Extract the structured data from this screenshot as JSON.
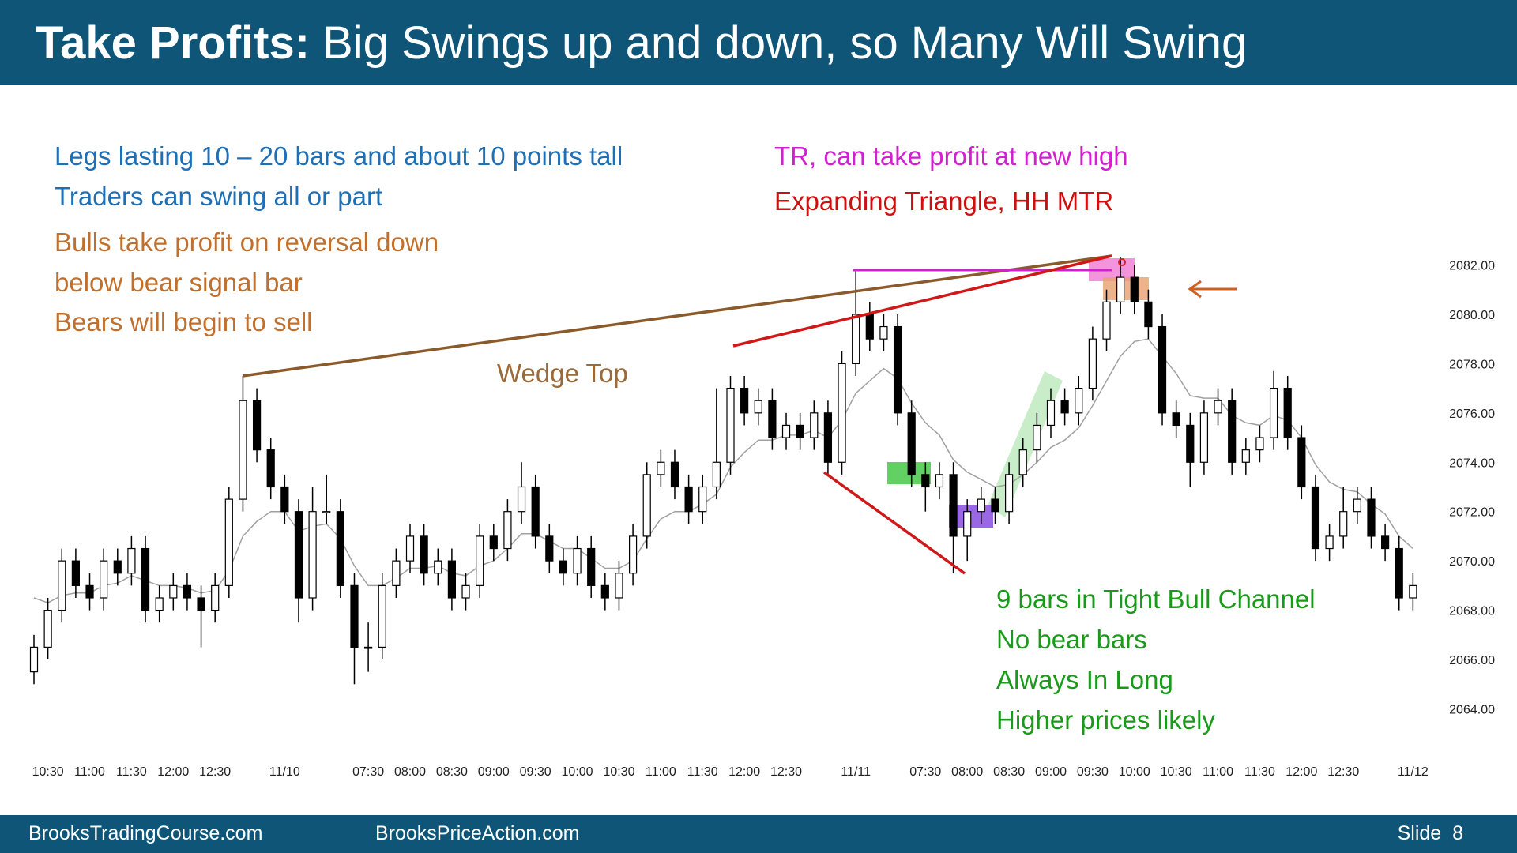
{
  "header": {
    "title_bold": "Take Profits:",
    "title_rest": "Big Swings up and down, so Many Will Swing"
  },
  "chart_data": {
    "type": "candlestick",
    "notes": {
      "legs": "Legs lasting 10 – 20 bars and about 10 points tall",
      "swing": "Traders can swing all or part",
      "bulls1": "Bulls take profit on reversal down",
      "bulls2": "below bear signal bar",
      "bears": "Bears will begin to sell",
      "tr": "TR, can take profit at new high",
      "triangle": "Expanding Triangle, HH MTR",
      "wedge": "Wedge Top",
      "channel1": "9 bars in Tight Bull Channel",
      "channel2": "No bear bars",
      "channel3": "Always In Long",
      "channel4": "Higher prices likely"
    },
    "categories": [
      null,
      "10:30",
      null,
      null,
      "11:00",
      null,
      null,
      "11:30",
      null,
      null,
      "12:00",
      null,
      null,
      "12:30",
      null,
      null,
      null,
      null,
      "11/10",
      null,
      null,
      null,
      null,
      null,
      "07:30",
      null,
      null,
      "08:00",
      null,
      null,
      "08:30",
      null,
      null,
      "09:00",
      null,
      null,
      "09:30",
      null,
      null,
      "10:00",
      null,
      null,
      "10:30",
      null,
      null,
      "11:00",
      null,
      null,
      "11:30",
      null,
      null,
      "12:00",
      null,
      null,
      "12:30",
      null,
      null,
      null,
      null,
      "11/11",
      null,
      null,
      null,
      null,
      "07:30",
      null,
      null,
      "08:00",
      null,
      null,
      "08:30",
      null,
      null,
      "09:00",
      null,
      null,
      "09:30",
      null,
      null,
      "10:00",
      null,
      null,
      "10:30",
      null,
      null,
      "11:00",
      null,
      null,
      "11:30",
      null,
      null,
      "12:00",
      null,
      null,
      "12:30",
      null,
      null,
      null,
      null,
      "11/12"
    ],
    "candles": [
      [
        2065.5,
        2067,
        2065,
        2066.5
      ],
      [
        2066.5,
        2068.5,
        2066,
        2068
      ],
      [
        2068,
        2070.5,
        2067.5,
        2070
      ],
      [
        2070,
        2070.5,
        2068.5,
        2069
      ],
      [
        2069,
        2069.5,
        2068,
        2068.5
      ],
      [
        2068.5,
        2070.5,
        2068,
        2070
      ],
      [
        2070,
        2070.5,
        2069,
        2069.5
      ],
      [
        2069.5,
        2071,
        2069,
        2070.5
      ],
      [
        2070.5,
        2071,
        2067.5,
        2068
      ],
      [
        2068,
        2069,
        2067.5,
        2068.5
      ],
      [
        2068.5,
        2069.5,
        2068,
        2069
      ],
      [
        2069,
        2069.5,
        2068,
        2068.5
      ],
      [
        2068.5,
        2069,
        2066.5,
        2068
      ],
      [
        2068,
        2069.5,
        2067.5,
        2069
      ],
      [
        2069,
        2073,
        2068.5,
        2072.5
      ],
      [
        2072.5,
        2077.5,
        2072,
        2076.5
      ],
      [
        2076.5,
        2077,
        2074,
        2074.5
      ],
      [
        2074.5,
        2075,
        2072.5,
        2073
      ],
      [
        2073,
        2073.5,
        2071.5,
        2072
      ],
      [
        2072,
        2072.5,
        2067.5,
        2068.5
      ],
      [
        2068.5,
        2073,
        2068,
        2072
      ],
      [
        2072,
        2073.5,
        2071.5,
        2072
      ],
      [
        2072,
        2072.5,
        2068.5,
        2069
      ],
      [
        2069,
        2069.5,
        2065,
        2066.5
      ],
      [
        2066.5,
        2067.5,
        2065.5,
        2066.5
      ],
      [
        2066.5,
        2069.5,
        2066,
        2069
      ],
      [
        2069,
        2070.5,
        2068.5,
        2070
      ],
      [
        2070,
        2071.5,
        2069.5,
        2071
      ],
      [
        2071,
        2071.5,
        2069,
        2069.5
      ],
      [
        2069.5,
        2070.5,
        2069,
        2070
      ],
      [
        2070,
        2070.5,
        2068,
        2068.5
      ],
      [
        2068.5,
        2069.5,
        2068,
        2069
      ],
      [
        2069,
        2071.5,
        2068.5,
        2071
      ],
      [
        2071,
        2071.5,
        2070,
        2070.5
      ],
      [
        2070.5,
        2072.5,
        2070,
        2072
      ],
      [
        2072,
        2074,
        2071.5,
        2073
      ],
      [
        2073,
        2073.5,
        2070.5,
        2071
      ],
      [
        2071,
        2071.5,
        2069.5,
        2070
      ],
      [
        2070,
        2070.5,
        2069,
        2069.5
      ],
      [
        2069.5,
        2071,
        2069,
        2070.5
      ],
      [
        2070.5,
        2071,
        2068.5,
        2069
      ],
      [
        2069,
        2069.5,
        2068,
        2068.5
      ],
      [
        2068.5,
        2070,
        2068,
        2069.5
      ],
      [
        2069.5,
        2071.5,
        2069,
        2071
      ],
      [
        2071,
        2074,
        2070.5,
        2073.5
      ],
      [
        2073.5,
        2074.5,
        2073,
        2074
      ],
      [
        2074,
        2074.5,
        2072.5,
        2073
      ],
      [
        2073,
        2073.5,
        2071.5,
        2072
      ],
      [
        2072,
        2073.5,
        2071.5,
        2073
      ],
      [
        2073,
        2077,
        2072.5,
        2074
      ],
      [
        2074,
        2077.5,
        2073.5,
        2077
      ],
      [
        2077,
        2077.5,
        2075.5,
        2076
      ],
      [
        2076,
        2077,
        2075.5,
        2076.5
      ],
      [
        2076.5,
        2077,
        2074.5,
        2075
      ],
      [
        2075,
        2076,
        2074.5,
        2075.5
      ],
      [
        2075.5,
        2076,
        2074.5,
        2075
      ],
      [
        2075,
        2076.5,
        2074.5,
        2076
      ],
      [
        2076,
        2076.5,
        2073.5,
        2074
      ],
      [
        2074,
        2078.5,
        2073.5,
        2078
      ],
      [
        2078,
        2081.8,
        2077.5,
        2080
      ],
      [
        2080,
        2080.5,
        2078.5,
        2079
      ],
      [
        2079,
        2080,
        2078.5,
        2079.5
      ],
      [
        2079.5,
        2080,
        2075.5,
        2076
      ],
      [
        2076,
        2076.5,
        2073,
        2073.5
      ],
      [
        2073.5,
        2074,
        2072,
        2073
      ],
      [
        2073,
        2074,
        2072.5,
        2073.5
      ],
      [
        2073.5,
        2074,
        2069.5,
        2071
      ],
      [
        2071,
        2072.5,
        2070,
        2072
      ],
      [
        2072,
        2073,
        2071.5,
        2072.5
      ],
      [
        2072.5,
        2073,
        2071.5,
        2072
      ],
      [
        2072,
        2074,
        2071.5,
        2073.5
      ],
      [
        2073.5,
        2075,
        2073,
        2074.5
      ],
      [
        2074.5,
        2076,
        2074,
        2075.5
      ],
      [
        2075.5,
        2077,
        2075,
        2076.5
      ],
      [
        2076.5,
        2077,
        2075.5,
        2076
      ],
      [
        2076,
        2077.5,
        2075.5,
        2077
      ],
      [
        2077,
        2079.5,
        2076.5,
        2079
      ],
      [
        2079,
        2081,
        2078.5,
        2080.5
      ],
      [
        2080.5,
        2082.3,
        2080,
        2081.5
      ],
      [
        2081.5,
        2082,
        2080,
        2080.5
      ],
      [
        2080.5,
        2081,
        2079,
        2079.5
      ],
      [
        2079.5,
        2080,
        2075.5,
        2076
      ],
      [
        2076,
        2076.5,
        2075,
        2075.5
      ],
      [
        2075.5,
        2076,
        2073,
        2074
      ],
      [
        2074,
        2076.5,
        2073.5,
        2076
      ],
      [
        2076,
        2077,
        2075.5,
        2076.5
      ],
      [
        2076.5,
        2077,
        2073.5,
        2074
      ],
      [
        2074,
        2075,
        2073.5,
        2074.5
      ],
      [
        2074.5,
        2075.5,
        2074,
        2075
      ],
      [
        2075,
        2077.7,
        2074.5,
        2077
      ],
      [
        2077,
        2077.5,
        2074.5,
        2075
      ],
      [
        2075,
        2075.5,
        2072.5,
        2073
      ],
      [
        2073,
        2073.5,
        2070,
        2070.5
      ],
      [
        2070.5,
        2071.5,
        2070,
        2071
      ],
      [
        2071,
        2073,
        2070.5,
        2072
      ],
      [
        2072,
        2073,
        2071.5,
        2072.5
      ],
      [
        2072.5,
        2073,
        2070.5,
        2071
      ],
      [
        2071,
        2071.5,
        2070,
        2070.5
      ],
      [
        2070.5,
        2071,
        2068,
        2068.5
      ],
      [
        2068.5,
        2069.5,
        2068,
        2069
      ]
    ],
    "moving_average": [
      2068.5,
      2068.3,
      2068.6,
      2068.7,
      2068.7,
      2069,
      2069.1,
      2069.4,
      2069.2,
      2069,
      2069,
      2068.9,
      2068.7,
      2068.8,
      2069.6,
      2071,
      2071.6,
      2072,
      2072,
      2071.2,
      2071.4,
      2071.5,
      2070.9,
      2069.8,
      2069,
      2069,
      2069.3,
      2069.7,
      2069.7,
      2069.8,
      2069.5,
      2069.4,
      2069.8,
      2070,
      2070.5,
      2071.1,
      2071.1,
      2070.8,
      2070.5,
      2070.5,
      2070.1,
      2069.7,
      2069.7,
      2070,
      2070.9,
      2071.7,
      2072,
      2072,
      2072.3,
      2072.7,
      2073.8,
      2074.4,
      2074.9,
      2074.9,
      2075.1,
      2075.1,
      2075.3,
      2075,
      2075.7,
      2076.8,
      2077.3,
      2077.8,
      2077.4,
      2076.4,
      2075.6,
      2075.1,
      2074.1,
      2073.6,
      2073.3,
      2073,
      2073.1,
      2073.5,
      2074,
      2074.6,
      2074.9,
      2075.4,
      2076.3,
      2077.3,
      2078.3,
      2078.9,
      2079,
      2078.3,
      2077.6,
      2076.7,
      2076.6,
      2076.6,
      2075.9,
      2075.6,
      2075.5,
      2075.9,
      2075.7,
      2075,
      2073.9,
      2073.2,
      2072.9,
      2072.8,
      2072.3,
      2071.9,
      2071,
      2070.5
    ],
    "ma_color": "#a0a0a0",
    "up_color": "#ffffff",
    "down_color": "#000000",
    "wick_color": "#000000",
    "ylim": [
      2062.5,
      2084
    ],
    "yticks": [
      {
        "value": 2064,
        "label": "2064.00"
      },
      {
        "value": 2066,
        "label": "2066.00"
      },
      {
        "value": 2068,
        "label": "2068.00"
      },
      {
        "value": 2070,
        "label": "2070.00"
      },
      {
        "value": 2072,
        "label": "2072.00"
      },
      {
        "value": 2074,
        "label": "2074.00"
      },
      {
        "value": 2076,
        "label": "2076.00"
      },
      {
        "value": 2078,
        "label": "2078.00"
      },
      {
        "value": 2080,
        "label": "2080.00"
      },
      {
        "value": 2082,
        "label": "2082.00"
      }
    ],
    "grid": false
  },
  "footer": {
    "left": "BrooksTradingCourse.com",
    "center": "BrooksPriceAction.com",
    "right": "Slide  8"
  }
}
